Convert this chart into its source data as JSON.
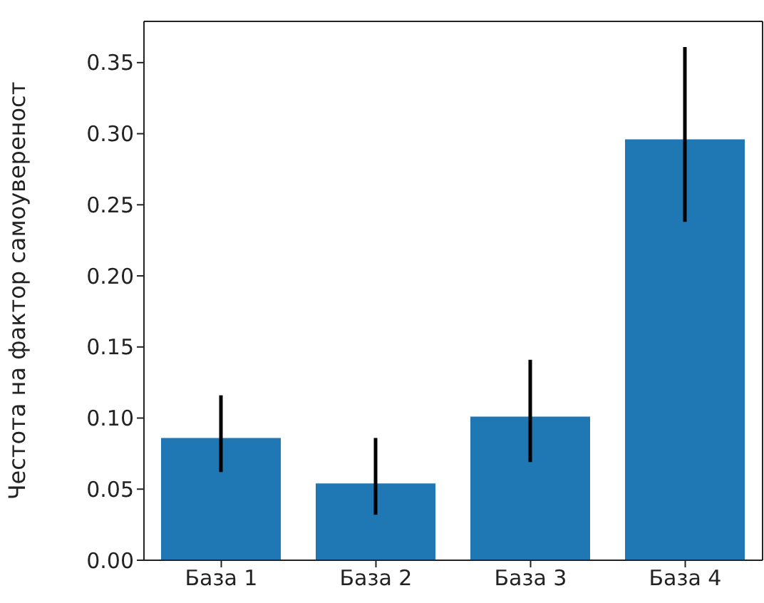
{
  "chart_data": {
    "type": "bar",
    "ylabel": "Честота на фактор самоувереност",
    "categories": [
      "База 1",
      "База 2",
      "База 3",
      "База 4"
    ],
    "values": [
      0.086,
      0.054,
      0.101,
      0.296
    ],
    "errors": [
      [
        0.062,
        0.116
      ],
      [
        0.032,
        0.086
      ],
      [
        0.069,
        0.141
      ],
      [
        0.238,
        0.361
      ]
    ],
    "color": "#1f77b4",
    "ylim": [
      0,
      0.379
    ],
    "yticks": [
      {
        "value": 0,
        "label": "0.00"
      },
      {
        "value": 0.05,
        "label": "0.05"
      },
      {
        "value": 0.1,
        "label": "0.10"
      },
      {
        "value": 0.15,
        "label": "0.15"
      },
      {
        "value": 0.2,
        "label": "0.20"
      },
      {
        "value": 0.25,
        "label": "0.25"
      },
      {
        "value": 0.3,
        "label": "0.30"
      },
      {
        "value": 0.35,
        "label": "0.35"
      }
    ],
    "grid": false
  }
}
